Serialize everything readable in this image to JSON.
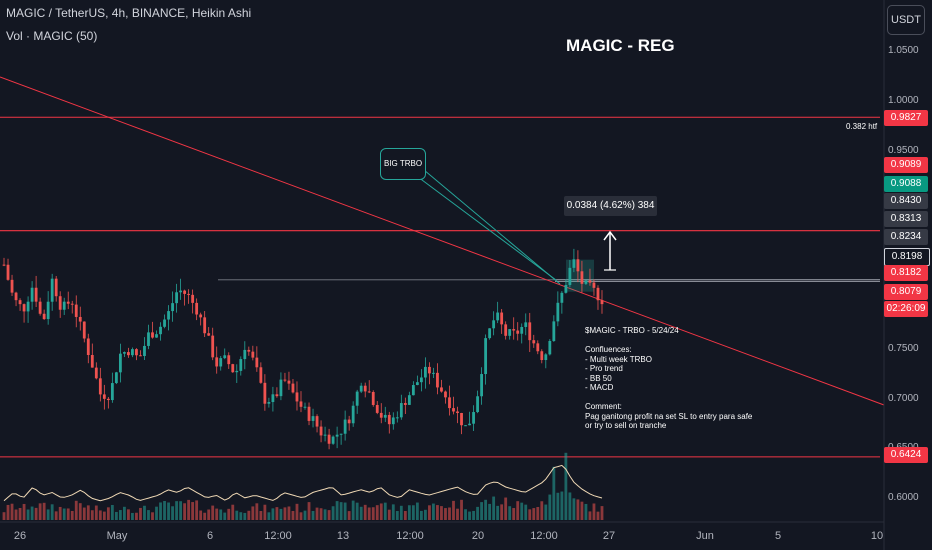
{
  "header": {
    "symbol_line": "MAGIC / TetherUS, 4h, BINANCE, Heikin Ashi",
    "volume_line": "Vol · MAGIC (50)"
  },
  "chart_title": "MAGIC - REG",
  "currency_button": "USDT",
  "chart_data": {
    "type": "candlestick",
    "title": "MAGIC - REG",
    "price_axis_ticks": [
      "1.0500",
      "1.0000",
      "0.9500",
      "0.7500",
      "0.7000",
      "0.6500",
      "0.6000"
    ],
    "x_axis_ticks": [
      "26",
      "May",
      "6",
      "12:00",
      "13",
      "12:00",
      "20",
      "12:00",
      "27",
      "Jun",
      "5",
      "10"
    ],
    "ylim": [
      0.58,
      1.08
    ],
    "price_labels": [
      {
        "value": "0.9827",
        "color": "#f23645"
      },
      {
        "value": "0.9089",
        "color": "#f23645"
      },
      {
        "value": "0.9088",
        "color": "#089981"
      },
      {
        "value": "0.8430",
        "color": "#363a45"
      },
      {
        "value": "0.8313",
        "color": "#363a45"
      },
      {
        "value": "0.8234",
        "color": "#363a45"
      },
      {
        "value": "0.8198",
        "color": "#131722"
      },
      {
        "value": "0.8182",
        "color": "#f23645"
      },
      {
        "value": "0.8079",
        "color": "#f23645"
      },
      {
        "value": "02:26:09",
        "color": "#f23645"
      },
      {
        "value": "0.6424",
        "color": "#f23645"
      }
    ],
    "horizontal_levels": [
      0.9827,
      0.9089,
      0.8198,
      0.8182,
      0.6424
    ],
    "fib_label": "0.382 htf",
    "annotations": {
      "big_trbo_label": "BIG TRBO",
      "measure_label": "0.0384 (4.62%) 384"
    },
    "price_path": [
      0.835,
      0.8,
      0.79,
      0.815,
      0.775,
      0.82,
      0.79,
      0.8,
      0.77,
      0.74,
      0.705,
      0.705,
      0.745,
      0.75,
      0.74,
      0.765,
      0.77,
      0.785,
      0.81,
      0.805,
      0.79,
      0.765,
      0.735,
      0.74,
      0.725,
      0.755,
      0.735,
      0.7,
      0.7,
      0.72,
      0.705,
      0.69,
      0.68,
      0.665,
      0.66,
      0.67,
      0.685,
      0.72,
      0.705,
      0.685,
      0.675,
      0.69,
      0.705,
      0.72,
      0.73,
      0.715,
      0.7,
      0.685,
      0.67,
      0.7,
      0.76,
      0.785,
      0.765,
      0.765,
      0.775,
      0.755,
      0.74,
      0.78,
      0.81,
      0.84,
      0.815,
      0.81,
      0.8
    ],
    "volume_path": [
      0.35,
      0.5,
      0.4,
      0.6,
      0.45,
      0.5,
      0.4,
      0.45,
      0.55,
      0.4,
      0.35,
      0.4,
      0.5,
      0.45,
      0.35,
      0.4,
      0.45,
      0.55,
      0.5,
      0.6,
      0.5,
      0.4,
      0.45,
      0.35,
      0.5,
      0.4,
      0.45,
      0.4,
      0.35,
      0.5,
      0.45,
      0.4,
      0.5,
      0.55,
      0.6,
      0.45,
      0.5,
      0.55,
      0.5,
      0.6,
      0.45,
      0.4,
      0.55,
      0.5,
      0.45,
      0.5,
      0.55,
      0.6,
      0.5,
      0.45,
      0.65,
      0.7,
      0.6,
      0.55,
      0.5,
      0.6,
      0.7,
      0.95,
      1.0,
      0.7,
      0.55,
      0.45,
      0.4
    ]
  },
  "note": {
    "title": "$MAGIC - TRBO - 5/24/24",
    "lines": [
      "",
      "Confluences:",
      "- Multi week TRBO",
      "- Pro trend",
      "- BB 50",
      "- MACD",
      "",
      "Comment:",
      "Pag ganitong profit na set SL to entry para safe",
      "or try to sell on tranche"
    ]
  }
}
